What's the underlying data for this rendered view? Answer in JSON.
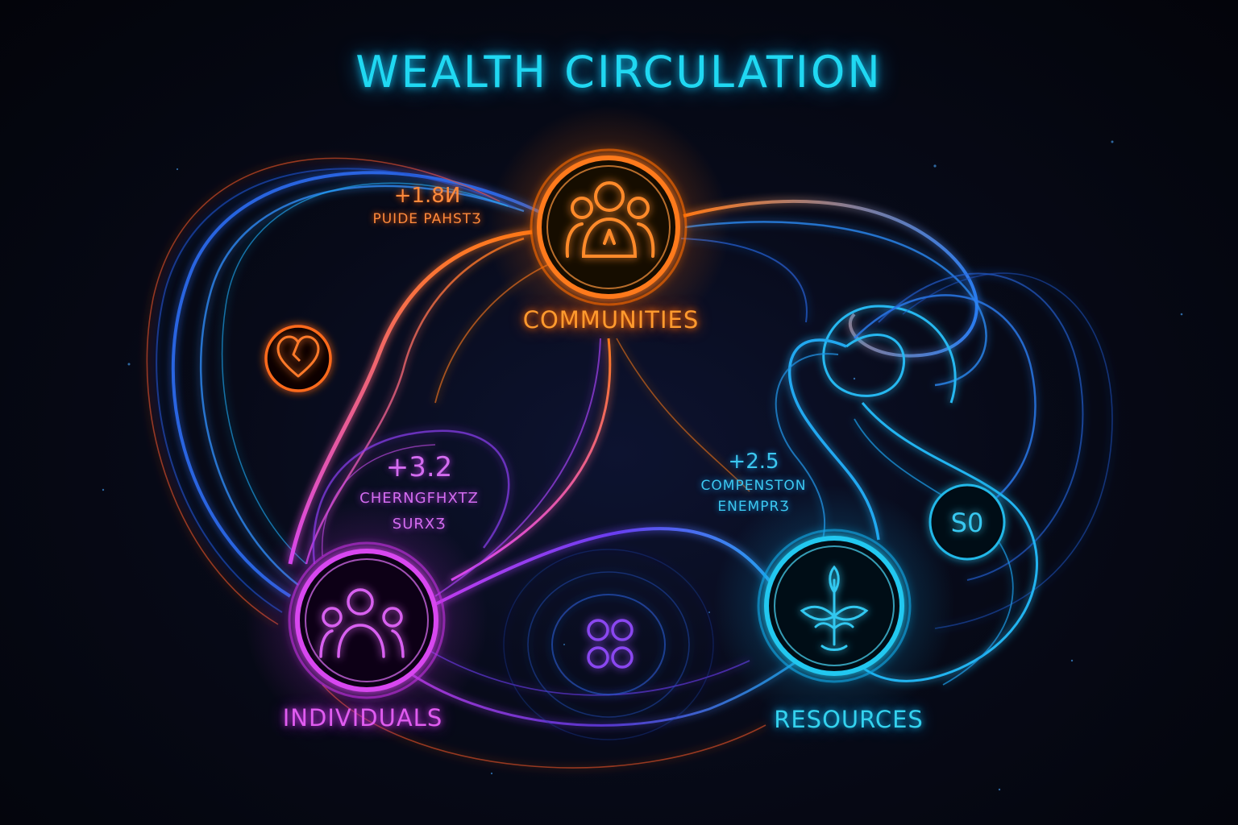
{
  "title": "WEALTH CIRCULATION",
  "nodes": {
    "communities": {
      "label": "COMMUNITIES",
      "color": "#ff7a1a"
    },
    "individuals": {
      "label": "INDIVIDUALS",
      "color": "#d846f0"
    },
    "resources": {
      "label": "RESOURCES",
      "color": "#22c8f0"
    }
  },
  "stats": [
    {
      "value": "+1.8И",
      "caption": "PUIDE PAHSTƷ"
    },
    {
      "value": "+3.2",
      "caption_line1": "CHERNGFHXTZ",
      "caption_line2": "SURXƷ"
    },
    {
      "value": "+2.5",
      "caption_line1": "COMPENSTON",
      "caption_line2": "ENEMPRƷ"
    }
  ],
  "badges": {
    "right_badge_text": "S0"
  },
  "icons": {
    "communities": "people-group-icon",
    "individuals": "people-group-icon",
    "resources": "plant-sprout-icon",
    "heart_badge": "heart-icon",
    "center_badge": "dots-cluster-icon"
  }
}
